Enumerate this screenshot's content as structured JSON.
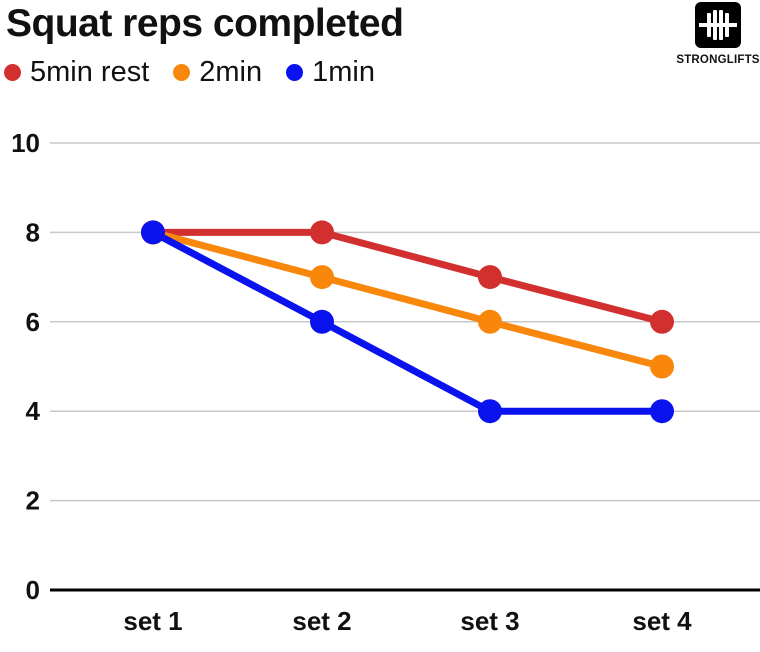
{
  "brand": {
    "name": "STRONGLIFTS"
  },
  "chart_data": {
    "type": "line",
    "title": "Squat reps completed",
    "xlabel": "",
    "ylabel": "",
    "categories": [
      "set 1",
      "set 2",
      "set 3",
      "set 4"
    ],
    "ylim": [
      0,
      10
    ],
    "yticks": [
      0,
      2,
      4,
      6,
      8,
      10
    ],
    "grid": true,
    "legend_position": "top-left",
    "series": [
      {
        "name": "5min rest",
        "color": "#d2302f",
        "values": [
          8,
          8,
          7,
          6
        ]
      },
      {
        "name": "2min",
        "color": "#f8870c",
        "values": [
          8,
          7,
          6,
          5
        ]
      },
      {
        "name": "1min",
        "color": "#0a12ee",
        "values": [
          8,
          6,
          4,
          4
        ]
      }
    ]
  }
}
